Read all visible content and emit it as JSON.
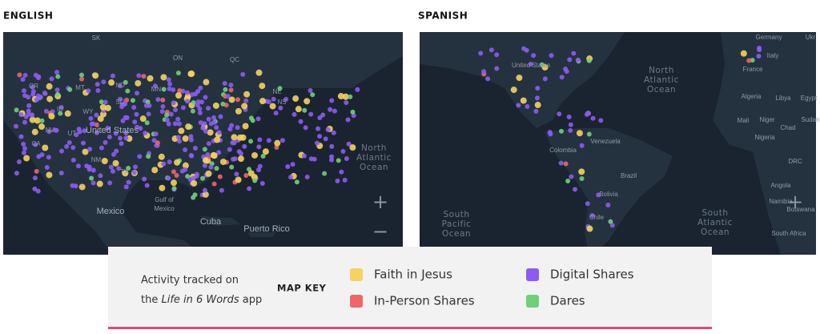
{
  "headings": {
    "english": "ENGLISH",
    "spanish": "SPANISH"
  },
  "english_map": {
    "labels": [
      "SK",
      "ON",
      "QC",
      "MT",
      "ND",
      "MN",
      "ID",
      "WY",
      "SD",
      "OR",
      "NV",
      "UT",
      "CA",
      "United States",
      "NE",
      "NS",
      "NM",
      "TX",
      "Mexico",
      "Cuba",
      "Puerto Rico"
    ],
    "gulf": [
      "Gulf of",
      "Mexico"
    ],
    "ocean": [
      "North",
      "Atlantic",
      "Ocean"
    ],
    "zoom_in": "+",
    "zoom_out": "−"
  },
  "spanish_map": {
    "labels": [
      "Germany",
      "Ukr",
      "France",
      "Italy",
      "United States",
      "Algeria",
      "Libya",
      "Egypt",
      "Mali",
      "Niger",
      "Chad",
      "Sudan",
      "Nigeria",
      "DRC",
      "Angola",
      "Namibia",
      "Botswana",
      "Venezuela",
      "Colombia",
      "Brazil",
      "Bolivia",
      "Chile",
      "South Africa"
    ],
    "oceans": [
      [
        "North",
        "Atlantic",
        "Ocean"
      ],
      [
        "South",
        "Pacific",
        "Ocean"
      ],
      [
        "South",
        "Atlantic",
        "Ocean"
      ]
    ],
    "zoom_in": "+"
  },
  "legend": {
    "note_line1": "Activity tracked on",
    "note_prefix": "the",
    "note_app": "Life in 6 Words",
    "note_suffix": "app",
    "title": "MAP KEY",
    "items": [
      {
        "label": "Faith in Jesus",
        "color": "#f6d25e"
      },
      {
        "label": "In-Person Shares",
        "color": "#f0646b"
      },
      {
        "label": "Digital Shares",
        "color": "#8c5cf2"
      },
      {
        "label": "Dares",
        "color": "#6fd07a"
      }
    ]
  }
}
